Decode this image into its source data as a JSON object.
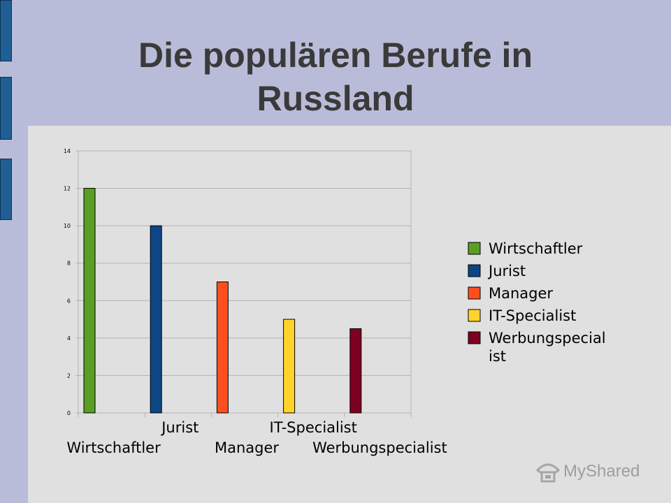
{
  "slide": {
    "title": "Die populären Berufe in Russland"
  },
  "colors": {
    "background": "#b9bcd9",
    "content_panel": "#e0e0e0",
    "side_bars": "#1f5f94",
    "title_text": "#3a3a3a"
  },
  "chart_data": {
    "type": "bar",
    "title": "",
    "xlabel": "",
    "ylabel": "",
    "ylim": [
      0,
      14
    ],
    "y_ticks": [
      "0",
      "2",
      "4",
      "6",
      "8",
      "10",
      "12",
      "14"
    ],
    "categories": [
      "Wirtschaftler",
      "Jurist",
      "Manager",
      "IT-Specialist",
      "Werbungspecialist"
    ],
    "values": [
      12,
      10,
      7,
      5,
      4.5
    ],
    "colors": [
      "#5a9e23",
      "#0d4686",
      "#ff4f1f",
      "#ffd42a",
      "#7e0021"
    ],
    "grid": "horizontal",
    "legend": {
      "position": "right",
      "entries": [
        "Wirtschaftler",
        "Jurist",
        "Manager",
        "IT-Specialist",
        "Werbungspecialist"
      ]
    }
  },
  "watermark": {
    "text": "MyShared",
    "icon": "mushroom-logo-icon"
  }
}
